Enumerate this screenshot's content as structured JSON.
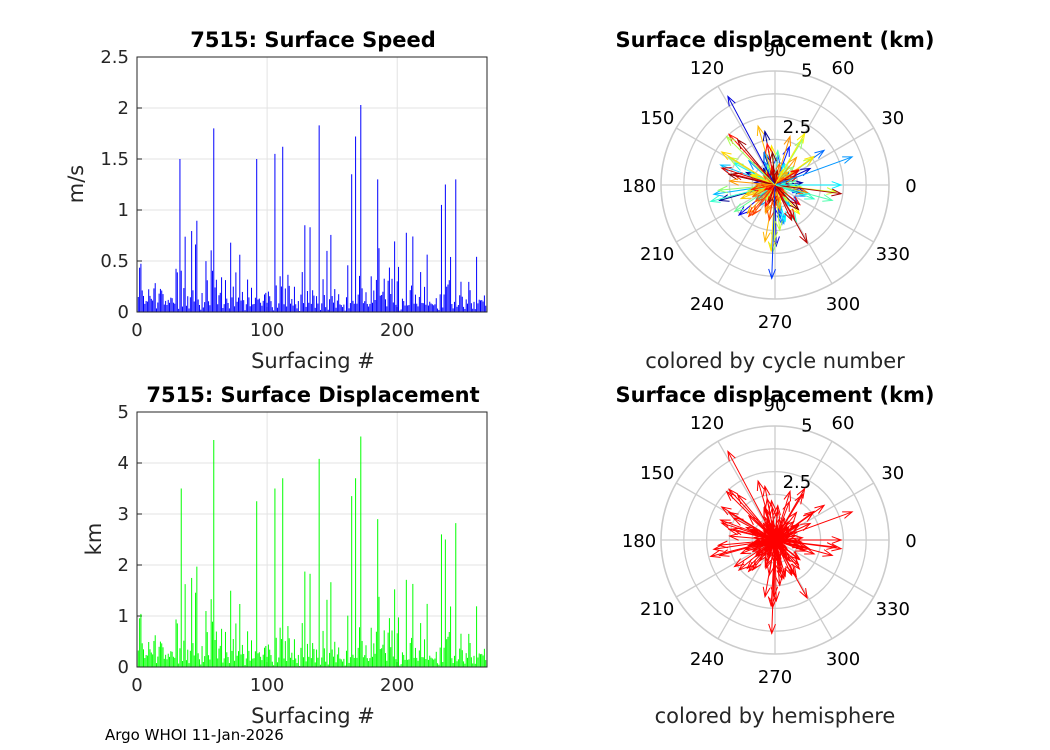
{
  "footer": "Argo WHOI 11-Jan-2026",
  "chart_data": [
    {
      "type": "bar",
      "title": "7515: Surface Speed",
      "xlabel": "Surfacing #",
      "ylabel": "m/s",
      "xlim": [
        0,
        269
      ],
      "ylim": [
        0,
        2.5
      ],
      "xticks": [
        "0",
        "100",
        "200"
      ],
      "yticks": [
        "0",
        "0.5",
        "1",
        "1.5",
        "2",
        "2.5"
      ],
      "color": "#0000ff",
      "n": 269,
      "peaks": [
        [
          33,
          1.5
        ],
        [
          59,
          1.8
        ],
        [
          92,
          1.5
        ],
        [
          106,
          1.55
        ],
        [
          112,
          1.62
        ],
        [
          140,
          1.83
        ],
        [
          165,
          1.35
        ],
        [
          168,
          1.72
        ],
        [
          172,
          2.03
        ],
        [
          185,
          1.3
        ],
        [
          234,
          1.05
        ],
        [
          237,
          1.25
        ],
        [
          245,
          1.3
        ]
      ]
    },
    {
      "type": "bar",
      "title": "7515: Surface Displacement",
      "xlabel": "Surfacing #",
      "ylabel": "km",
      "xlim": [
        0,
        269
      ],
      "ylim": [
        0,
        5
      ],
      "xticks": [
        "0",
        "100",
        "200"
      ],
      "yticks": [
        "0",
        "1",
        "2",
        "3",
        "4",
        "5"
      ],
      "color": "#00ff00",
      "n": 269,
      "peaks": [
        [
          34,
          3.5
        ],
        [
          59,
          4.45
        ],
        [
          92,
          3.25
        ],
        [
          106,
          3.5
        ],
        [
          112,
          3.7
        ],
        [
          140,
          4.08
        ],
        [
          165,
          3.35
        ],
        [
          168,
          3.7
        ],
        [
          172,
          4.52
        ],
        [
          185,
          2.9
        ],
        [
          234,
          2.6
        ],
        [
          237,
          2.5
        ],
        [
          245,
          2.82
        ]
      ]
    },
    {
      "type": "polar-compass",
      "title": "Surface displacement (km)",
      "caption": "colored by cycle number",
      "rlim": [
        0,
        5
      ],
      "rticks": [
        "2.5",
        "5"
      ],
      "angle_ticks": [
        "0",
        "30",
        "60",
        "90",
        "120",
        "150",
        "180",
        "210",
        "240",
        "270",
        "300",
        "330"
      ],
      "colormap": "jet",
      "arrow_count": 269,
      "dominant_arrows_deg_km": [
        [
          118,
          4.4
        ],
        [
          268,
          4.1
        ],
        [
          20,
          3.6
        ],
        [
          0,
          2.9
        ],
        [
          345,
          2.6
        ],
        [
          135,
          3.0
        ],
        [
          60,
          2.6
        ],
        [
          175,
          2.0
        ],
        [
          230,
          1.8
        ],
        [
          300,
          1.7
        ]
      ]
    },
    {
      "type": "polar-compass",
      "title": "Surface displacement (km)",
      "caption": "colored by hemisphere",
      "rlim": [
        0,
        5
      ],
      "rticks": [
        "2.5",
        "5"
      ],
      "angle_ticks": [
        "0",
        "30",
        "60",
        "90",
        "120",
        "150",
        "180",
        "210",
        "240",
        "270",
        "300",
        "330"
      ],
      "color": "#ff0000",
      "arrow_count": 269,
      "dominant_arrows_deg_km": [
        [
          118,
          4.4
        ],
        [
          268,
          4.1
        ],
        [
          20,
          3.6
        ],
        [
          0,
          2.9
        ],
        [
          345,
          2.6
        ],
        [
          135,
          3.0
        ],
        [
          60,
          2.6
        ],
        [
          175,
          2.0
        ],
        [
          230,
          1.8
        ],
        [
          300,
          1.7
        ]
      ]
    }
  ]
}
